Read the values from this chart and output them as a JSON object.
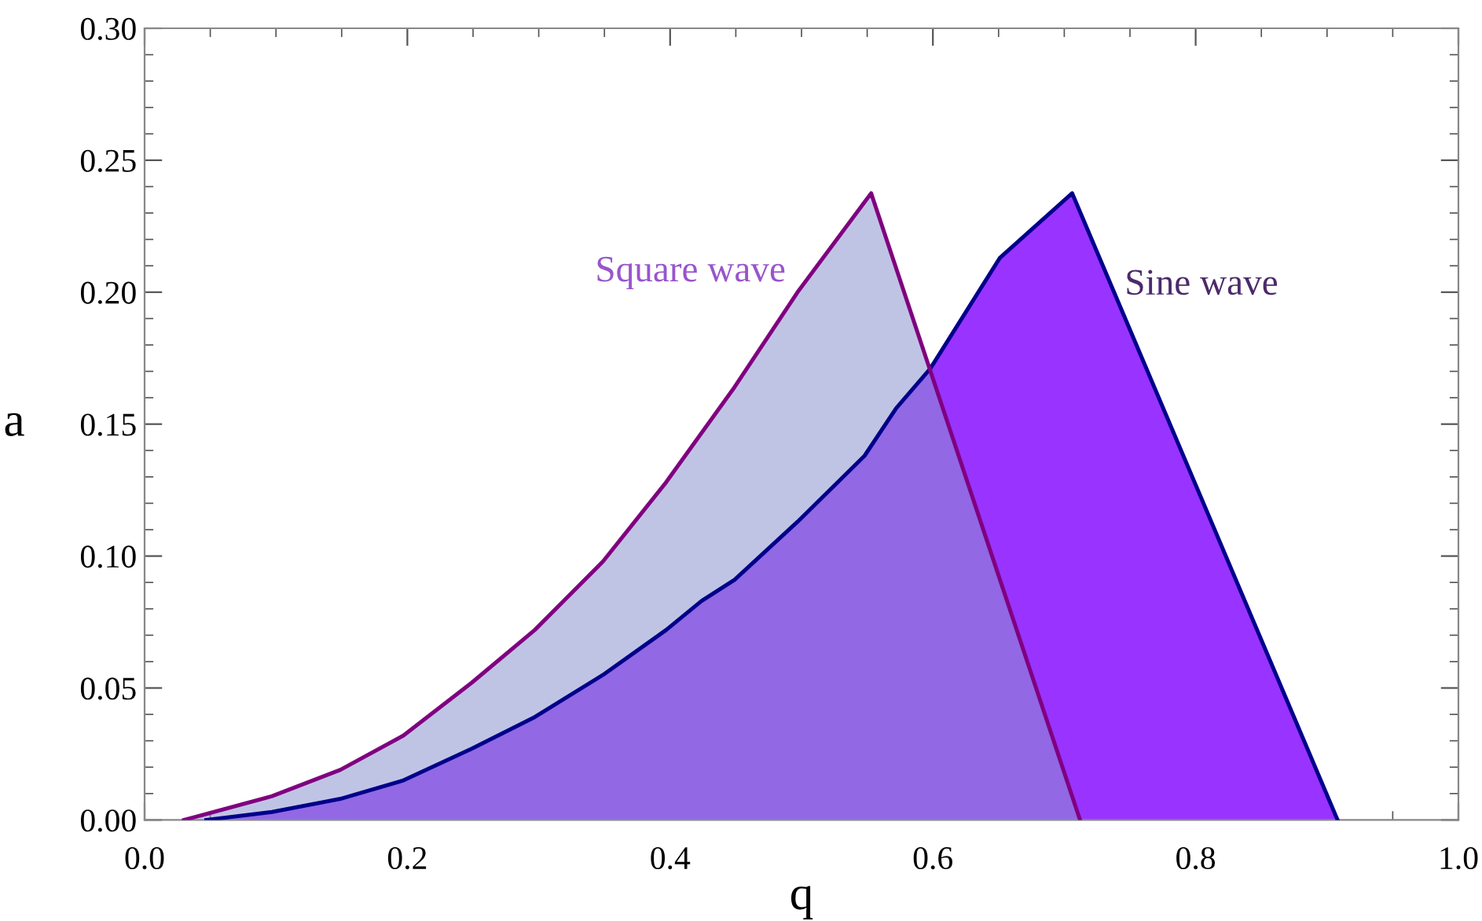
{
  "chart_data": {
    "type": "area",
    "xlabel": "q",
    "ylabel": "a",
    "xlim": [
      0,
      1
    ],
    "ylim": [
      0,
      0.3
    ],
    "xticks": [
      {
        "value": 0,
        "label": "0.0"
      },
      0.2,
      0.4,
      0.6,
      0.8,
      {
        "value": 1,
        "label": "1.0"
      }
    ],
    "yticks": [
      {
        "value": 0,
        "label": "0.00"
      },
      {
        "value": 0.05,
        "label": "0.05"
      },
      {
        "value": 0.1,
        "label": "0.10"
      },
      {
        "value": 0.15,
        "label": "0.15"
      },
      {
        "value": 0.2,
        "label": "0.20"
      },
      {
        "value": 0.25,
        "label": "0.25"
      },
      {
        "value": 0.3,
        "label": "0.30"
      }
    ],
    "grid": false,
    "legend": false,
    "series": [
      {
        "name": "Sine wave",
        "color": "#9933ff",
        "x": [
          0.047,
          0.097,
          0.149,
          0.197,
          0.249,
          0.297,
          0.349,
          0.397,
          0.424,
          0.449,
          0.497,
          0.548,
          0.572,
          0.598,
          0.651,
          0.706,
          0.908
        ],
        "values": [
          0,
          0.003,
          0.008,
          0.015,
          0.027,
          0.039,
          0.055,
          0.072,
          0.083,
          0.091,
          0.113,
          0.138,
          0.156,
          0.171,
          0.213,
          0.2375,
          0
        ]
      },
      {
        "name": "Square wave",
        "color": "#8d94ce",
        "x": [
          0.03,
          0.097,
          0.149,
          0.197,
          0.249,
          0.297,
          0.349,
          0.397,
          0.449,
          0.497,
          0.553,
          0.712
        ],
        "values": [
          0,
          0.009,
          0.019,
          0.032,
          0.052,
          0.072,
          0.098,
          0.128,
          0.164,
          0.2,
          0.2375,
          0
        ]
      }
    ]
  }
}
